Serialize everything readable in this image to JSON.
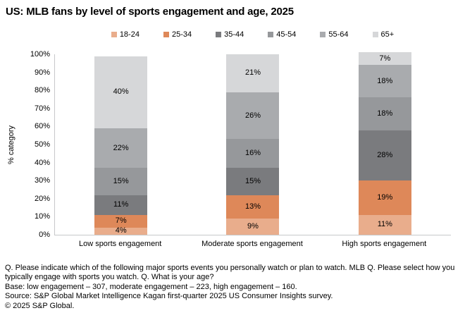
{
  "chart_data": {
    "type": "bar",
    "stacked": true,
    "title": "US: MLB fans by level of sports engagement and age, 2025",
    "categories": [
      "Low sports engagement",
      "Moderate sports engagement",
      "High sports engagement"
    ],
    "series": [
      {
        "name": "18-24",
        "color": "#E9AD8C",
        "values": [
          4,
          9,
          11
        ]
      },
      {
        "name": "25-34",
        "color": "#DE8859",
        "values": [
          7,
          13,
          19
        ]
      },
      {
        "name": "35-44",
        "color": "#7A7B7E",
        "values": [
          11,
          15,
          28
        ]
      },
      {
        "name": "45-54",
        "color": "#96989B",
        "values": [
          15,
          16,
          18
        ]
      },
      {
        "name": "55-64",
        "color": "#A9ABAE",
        "values": [
          22,
          26,
          18
        ]
      },
      {
        "name": "65+",
        "color": "#D6D7D9",
        "values": [
          40,
          21,
          7
        ]
      }
    ],
    "xlabel": "",
    "ylabel": "% category",
    "ylim": [
      0,
      100
    ],
    "yticks": [
      "0%",
      "10%",
      "20%",
      "30%",
      "40%",
      "50%",
      "60%",
      "70%",
      "80%",
      "90%",
      "100%"
    ],
    "value_suffix": "%",
    "legend_position": "top",
    "grid": false,
    "axis_color": "#C7C8CA"
  },
  "footer": {
    "lines": [
      "Q. Please indicate which of the following major sports events you personally watch or plan to watch. MLB Q. Please select how you typically engage with sports you watch. Q. What is your age?",
      "Base: low engagement – 307, moderate engagement – 223, high engagement – 160.",
      "Source: S&P Global Market Intelligence Kagan first-quarter 2025 US Consumer Insights survey.",
      "© 2025 S&P Global."
    ]
  }
}
